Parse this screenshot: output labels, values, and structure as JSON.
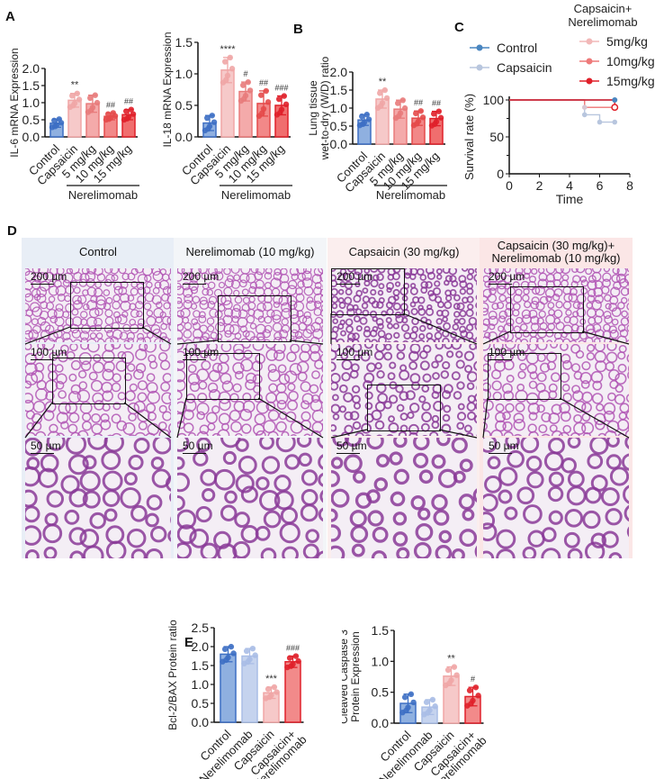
{
  "panels": {
    "A": {
      "label": "A"
    },
    "B": {
      "label": "B"
    },
    "C": {
      "label": "C"
    },
    "D": {
      "label": "D"
    },
    "E": {
      "label": "E"
    }
  },
  "histology": {
    "columns": [
      {
        "title": "Control",
        "bg": "#e8eef6"
      },
      {
        "title": "Nerelimomab (10 mg/kg)",
        "bg": "#f3f5f8"
      },
      {
        "title": "Capsaicin (30 mg/kg)",
        "bg": "#fbeeee"
      },
      {
        "title": "Capsaicin (30 mg/kg)+ Nerelimomab (10 mg/kg)",
        "bg": "#fbe6e6"
      }
    ],
    "scale_bars": [
      "200 µm",
      "100 µm",
      "50 µm"
    ]
  },
  "chart_data": [
    {
      "id": "A1",
      "type": "bar",
      "title": "",
      "ylabel": "IL-6 mRNA Expression",
      "categories": [
        "Control",
        "Capsaicin",
        "5 mg/kg",
        "10 mg/kg",
        "15 mg/kg"
      ],
      "group_label": "Nerelimomab",
      "values": [
        0.4,
        1.07,
        0.97,
        0.6,
        0.65
      ],
      "errors": [
        0.12,
        0.2,
        0.25,
        0.1,
        0.15
      ],
      "annotations": [
        "",
        "**",
        "",
        "##",
        "##"
      ],
      "yticks": [
        "0.0",
        "0.5",
        "1.0",
        "1.5",
        "2.0"
      ],
      "ylim": [
        0,
        2.0
      ]
    },
    {
      "id": "A2",
      "type": "bar",
      "ylabel": "IL-18 mRNA Expression",
      "categories": [
        "Control",
        "Capsaicin",
        "5 mg/kg",
        "10 mg/kg",
        "15 mg/kg"
      ],
      "group_label": "Nerelimomab",
      "values": [
        0.22,
        1.06,
        0.72,
        0.53,
        0.5
      ],
      "errors": [
        0.12,
        0.2,
        0.15,
        0.2,
        0.15
      ],
      "annotations": [
        "",
        "****",
        "#",
        "##",
        "###"
      ],
      "yticks": [
        "0.0",
        "0.5",
        "1.0",
        "1.5"
      ],
      "ylim": [
        0,
        1.5
      ]
    },
    {
      "id": "B",
      "type": "bar",
      "ylabel": "Lung tissue wet-to-dry (W/D) ratio",
      "categories": [
        "Control",
        "Capsaicin",
        "5 mg/kg",
        "10 mg/kg",
        "15 mg/kg"
      ],
      "group_label": "Nerelimomab",
      "values": [
        0.67,
        1.25,
        0.97,
        0.72,
        0.71
      ],
      "errors": [
        0.15,
        0.25,
        0.25,
        0.2,
        0.2
      ],
      "annotations": [
        "",
        "**",
        "",
        "##",
        "##"
      ],
      "yticks": [
        "0.0",
        "0.5",
        "1.0",
        "1.5",
        "2.0"
      ],
      "ylim": [
        0,
        2.0
      ]
    },
    {
      "id": "C",
      "type": "line",
      "xlabel": "Time",
      "ylabel": "Survival rate (%)",
      "xticks": [
        "0",
        "2",
        "4",
        "6",
        "8"
      ],
      "yticks": [
        "0",
        "50",
        "100"
      ],
      "xlim": [
        0,
        8
      ],
      "ylim": [
        0,
        100
      ],
      "legend_group_title": "Capsaicin+ Nerelimomab",
      "series": [
        {
          "name": "Control",
          "color": "#4a86c0",
          "x": [
            0,
            7
          ],
          "y": [
            100,
            100
          ]
        },
        {
          "name": "Capsaicin",
          "color": "#b8c6de",
          "x": [
            0,
            5,
            5,
            6,
            6,
            7
          ],
          "y": [
            100,
            100,
            80,
            80,
            70,
            70
          ]
        },
        {
          "name": "5mg/kg",
          "color": "#f2b8b8",
          "x": [
            0,
            5,
            5,
            7
          ],
          "y": [
            100,
            100,
            90,
            90
          ]
        },
        {
          "name": "10mg/kg",
          "color": "#ee7a7a",
          "x": [
            0,
            5,
            5,
            7
          ],
          "y": [
            100,
            100,
            90,
            90
          ]
        },
        {
          "name": "15mg/kg",
          "color": "#e0202a",
          "x": [
            0,
            7,
            7
          ],
          "y": [
            100,
            100,
            90
          ]
        }
      ]
    },
    {
      "id": "E1",
      "type": "bar",
      "ylabel": "Bcl-2/BAX Protein ratio",
      "categories": [
        "Control",
        "Nerelimomab",
        "Capsaicin",
        "Capsaicin+ Nerelimomab"
      ],
      "values": [
        1.8,
        1.75,
        0.78,
        1.6
      ],
      "errors": [
        0.2,
        0.2,
        0.15,
        0.15
      ],
      "annotations": [
        "",
        "",
        "***",
        "###"
      ],
      "yticks": [
        "0.0",
        "0.5",
        "1.0",
        "1.5",
        "2.0",
        "2.5"
      ],
      "ylim": [
        0,
        2.5
      ]
    },
    {
      "id": "E2",
      "type": "bar",
      "ylabel": "Cleaved Caspase 3 Protein Expression",
      "categories": [
        "Control",
        "Nerelimomab",
        "Capsaicin",
        "Capsaicin+ Nerelimomab"
      ],
      "values": [
        0.32,
        0.26,
        0.76,
        0.43
      ],
      "errors": [
        0.15,
        0.12,
        0.15,
        0.15
      ],
      "annotations": [
        "",
        "",
        "**",
        "#"
      ],
      "yticks": [
        "0.0",
        "0.5",
        "1.0",
        "1.5"
      ],
      "ylim": [
        0,
        1.5
      ]
    }
  ]
}
